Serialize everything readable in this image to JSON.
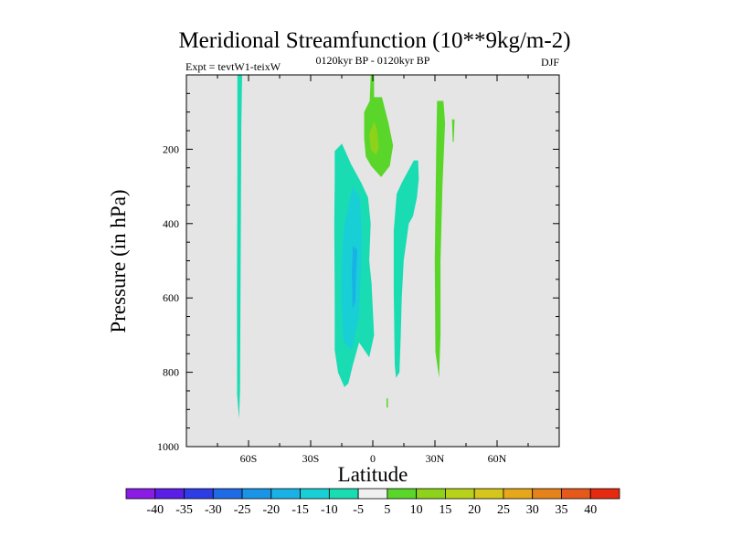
{
  "chart_data": {
    "type": "heatmap",
    "title": "Meridional Streamfunction (10**9kg/m-2)",
    "subtitle_left": "Expt = tevtW1-teixW",
    "subtitle_center": "0120kyr BP - 0120kyr BP",
    "subtitle_right": "DJF",
    "xlabel": "Latitude",
    "ylabel": "Pressure (in hPa)",
    "xlim": [
      -90,
      90
    ],
    "ylim": [
      1000,
      0
    ],
    "x_ticks": [
      {
        "value": -60,
        "label": "60S"
      },
      {
        "value": -30,
        "label": "30S"
      },
      {
        "value": 0,
        "label": "0"
      },
      {
        "value": 30,
        "label": "30N"
      },
      {
        "value": 60,
        "label": "60N"
      }
    ],
    "y_ticks": [
      {
        "value": 200,
        "label": "200"
      },
      {
        "value": 400,
        "label": "400"
      },
      {
        "value": 600,
        "label": "600"
      },
      {
        "value": 800,
        "label": "800"
      },
      {
        "value": 1000,
        "label": "1000"
      }
    ],
    "background_color": "#e5e5e5",
    "colorbar": {
      "levels": [
        "-40",
        "-35",
        "-30",
        "-25",
        "-20",
        "-15",
        "-10",
        "-5",
        "5",
        "10",
        "15",
        "20",
        "25",
        "30",
        "35",
        "40"
      ],
      "colors": [
        "#8a1ce6",
        "#5a1ee6",
        "#2e3ce6",
        "#1f6be6",
        "#1a94e6",
        "#19b2e6",
        "#19cfd6",
        "#1adcb3",
        "#f0f0f0",
        "#5ad62a",
        "#8ed21a",
        "#b8d21a",
        "#d6c51a",
        "#e6a81a",
        "#e6821a",
        "#e6591a",
        "#e62a10"
      ]
    },
    "regions": [
      {
        "name": "sh-high-lat-column",
        "level": "-5",
        "color": "#1adcb3",
        "points": [
          [
            -65.4,
            0
          ],
          [
            -63.1,
            0
          ],
          [
            -63.5,
            140
          ],
          [
            -63.9,
            600
          ],
          [
            -64.1,
            850
          ],
          [
            -64.6,
            925
          ],
          [
            -65.5,
            860
          ],
          [
            -65.6,
            600
          ],
          [
            -65.4,
            250
          ]
        ]
      },
      {
        "name": "tropical-negative-cell",
        "level": "-5",
        "color": "#1adcb3",
        "points": [
          [
            -18.4,
            205
          ],
          [
            -14.9,
            185
          ],
          [
            -10.5,
            240
          ],
          [
            -5.6,
            290
          ],
          [
            -2.3,
            330
          ],
          [
            -1.0,
            400
          ],
          [
            -1.7,
            500
          ],
          [
            -0.6,
            560
          ],
          [
            0.6,
            700
          ],
          [
            -1.7,
            760
          ],
          [
            -6.6,
            720
          ],
          [
            -9.6,
            780
          ],
          [
            -11.8,
            830
          ],
          [
            -13.7,
            840
          ],
          [
            -16.8,
            800
          ],
          [
            -18.4,
            740
          ],
          [
            -18.4,
            600
          ],
          [
            -18.6,
            400
          ],
          [
            -18.4,
            280
          ]
        ]
      },
      {
        "name": "tropical-negative-cell-core",
        "level": "-10",
        "color": "#19cfd6",
        "points": [
          [
            -13.7,
            400
          ],
          [
            -9.6,
            300
          ],
          [
            -6.2,
            330
          ],
          [
            -5.1,
            450
          ],
          [
            -6.6,
            650
          ],
          [
            -10.1,
            740
          ],
          [
            -14.1,
            720
          ],
          [
            -15.3,
            600
          ],
          [
            -14.9,
            480
          ]
        ]
      },
      {
        "name": "tropical-negative-cell-center",
        "level": "-15",
        "color": "#19b2e6",
        "points": [
          [
            -10.1,
            530
          ],
          [
            -9.6,
            460
          ],
          [
            -7.5,
            470
          ],
          [
            -8.2,
            560
          ],
          [
            -8.4,
            610
          ],
          [
            -9.8,
            630
          ]
        ]
      },
      {
        "name": "nh-negative-column",
        "level": "-5",
        "color": "#1adcb3",
        "points": [
          [
            10.6,
            780
          ],
          [
            10.1,
            580
          ],
          [
            10.1,
            420
          ],
          [
            11.5,
            320
          ],
          [
            14.0,
            290
          ],
          [
            19.8,
            230
          ],
          [
            21.9,
            230
          ],
          [
            22.2,
            280
          ],
          [
            21.3,
            330
          ],
          [
            19.4,
            380
          ],
          [
            17.4,
            400
          ],
          [
            14.9,
            500
          ],
          [
            14.0,
            600
          ],
          [
            13.5,
            700
          ],
          [
            12.9,
            800
          ],
          [
            11.2,
            815
          ]
        ]
      },
      {
        "name": "upper-positive-cell",
        "level": "5",
        "color": "#5ad62a",
        "points": [
          [
            -1.0,
            0
          ],
          [
            0.6,
            0
          ],
          [
            0.6,
            60
          ],
          [
            4.4,
            60
          ],
          [
            7.6,
            130
          ],
          [
            9.8,
            190
          ],
          [
            8.2,
            245
          ],
          [
            4.0,
            275
          ],
          [
            -0.8,
            245
          ],
          [
            -3.4,
            220
          ],
          [
            -4.2,
            170
          ],
          [
            -4.2,
            100
          ],
          [
            -1.5,
            70
          ]
        ]
      },
      {
        "name": "upper-positive-cell-core",
        "level": "10",
        "color": "#8ed21a",
        "points": [
          [
            -1.7,
            160
          ],
          [
            0.6,
            125
          ],
          [
            2.1,
            150
          ],
          [
            2.9,
            195
          ],
          [
            1.6,
            215
          ],
          [
            -1.0,
            200
          ]
        ]
      },
      {
        "name": "nh-positive-column",
        "level": "5",
        "color": "#5ad62a",
        "points": [
          [
            31.0,
            70
          ],
          [
            34.1,
            70
          ],
          [
            34.9,
            130
          ],
          [
            33.6,
            300
          ],
          [
            32.7,
            500
          ],
          [
            32.7,
            700
          ],
          [
            32.0,
            815
          ],
          [
            30.2,
            745
          ],
          [
            29.9,
            500
          ],
          [
            30.6,
            200
          ]
        ]
      },
      {
        "name": "nh-positive-sliver",
        "level": "5",
        "color": "#5ad62a",
        "points": [
          [
            38.2,
            120
          ],
          [
            39.5,
            120
          ],
          [
            39.1,
            180
          ],
          [
            38.6,
            180
          ]
        ]
      },
      {
        "name": "surface-dot",
        "level": "5",
        "color": "#5ad62a",
        "points": [
          [
            6.6,
            870
          ],
          [
            7.3,
            870
          ],
          [
            7.3,
            895
          ],
          [
            6.6,
            895
          ]
        ]
      }
    ]
  }
}
